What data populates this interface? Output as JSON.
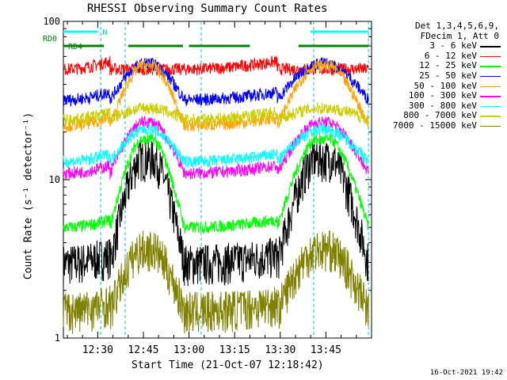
{
  "chart_data": {
    "type": "line",
    "title": "RHESSI Observing Summary Count Rates",
    "xlabel": "Start Time (21-Oct-07 12:18:42)",
    "ylabel": "Count Rate (s⁻¹ detector⁻¹)",
    "yscale": "log",
    "ylim": [
      1,
      100
    ],
    "xlim": [
      "12:18:42",
      "14:00:00"
    ],
    "x_ticks": [
      "12:30",
      "12:45",
      "13:00",
      "13:15",
      "13:30",
      "13:45"
    ],
    "y_ticks": [
      "1",
      "10",
      "100"
    ],
    "legend_header": [
      "Det 1,3,4,5,6,9,",
      "FDecim 1, Att 0"
    ],
    "legend_position": "right",
    "series": [
      {
        "name": "3 - 6 keV",
        "color": "#000000",
        "night": 3,
        "peak": 13
      },
      {
        "name": "6 - 12 keV",
        "color": "#ff0000",
        "night": 50,
        "peak": 50
      },
      {
        "name": "12 - 25 keV",
        "color": "#00ff00",
        "night": 5,
        "peak": 17
      },
      {
        "name": "25 - 50 keV",
        "color": "#0000ff",
        "night": 32,
        "peak": 52
      },
      {
        "name": "50 - 100 keV",
        "color": "#ffa500",
        "night": 22,
        "peak": 50
      },
      {
        "name": "100 - 300 keV",
        "color": "#ff00ff",
        "night": 11,
        "peak": 22
      },
      {
        "name": "300 - 800 keV",
        "color": "#00ffff",
        "night": 13,
        "peak": 20
      },
      {
        "name": "800 - 7000 keV",
        "color": "#cccc00",
        "night": 24,
        "peak": 28
      },
      {
        "name": "7000 - 15000 keV",
        "color": "#808000",
        "night": 1.5,
        "peak": 3.5
      }
    ],
    "status_bars": [
      {
        "label": "N",
        "color": "#00ffff",
        "segments": [
          [
            "12:18:42",
            "12:30"
          ],
          [
            "13:40",
            "13:59"
          ]
        ]
      },
      {
        "label": "RD0",
        "color": "#008000",
        "segments": []
      },
      {
        "label": "RD4",
        "color": "#008000",
        "segments": [
          [
            "12:18:42",
            "12:32"
          ],
          [
            "12:40",
            "12:58"
          ],
          [
            "13:00",
            "13:20"
          ],
          [
            "13:36",
            "13:59"
          ]
        ]
      }
    ],
    "saa_lines": [
      "12:31",
      "12:39",
      "13:04",
      "13:41",
      "13:59"
    ],
    "footer_timestamp": "16-Oct-2021 19:42"
  }
}
